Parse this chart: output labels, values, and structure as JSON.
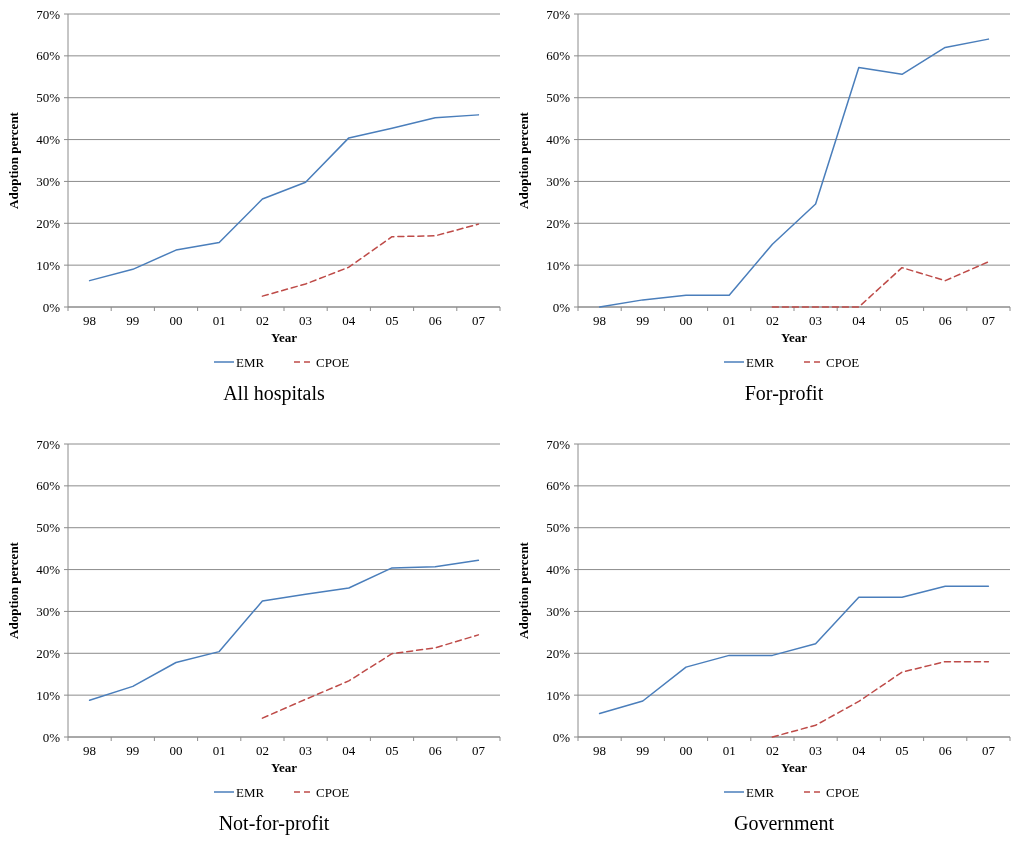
{
  "chart_data": [
    {
      "type": "line",
      "title": "All hospitals",
      "xlabel": "Year",
      "ylabel": "Adoption percent",
      "categories": [
        "98",
        "99",
        "00",
        "01",
        "02",
        "03",
        "04",
        "05",
        "06",
        "07"
      ],
      "series": [
        {
          "name": "EMR",
          "color": "#4a7ebb",
          "line_style": "solid",
          "values": [
            6.3,
            9,
            13.6,
            15.4,
            25.8,
            29.8,
            40.4,
            42.7,
            45.2,
            45.9
          ]
        },
        {
          "name": "CPOE",
          "color": "#be4b48",
          "line_style": "dashed",
          "values": [
            null,
            null,
            null,
            null,
            2.6,
            5.5,
            9.5,
            16.8,
            17,
            19.8
          ]
        }
      ],
      "ylim": [
        0,
        70
      ],
      "yticks": [
        {
          "value": 0,
          "label": "0%"
        },
        {
          "value": 10,
          "label": "10%"
        },
        {
          "value": 20,
          "label": "20%"
        },
        {
          "value": 30,
          "label": "30%"
        },
        {
          "value": 40,
          "label": "40%"
        },
        {
          "value": 50,
          "label": "50%"
        },
        {
          "value": 60,
          "label": "60%"
        },
        {
          "value": 70,
          "label": "70%"
        }
      ],
      "grid": "y",
      "legend": "bottom"
    },
    {
      "type": "line",
      "title": "For-profit",
      "xlabel": "Year",
      "ylabel": "Adoption percent",
      "categories": [
        "98",
        "99",
        "00",
        "01",
        "02",
        "03",
        "04",
        "05",
        "06",
        "07"
      ],
      "series": [
        {
          "name": "EMR",
          "color": "#4a7ebb",
          "line_style": "solid",
          "values": [
            0,
            1.7,
            2.8,
            2.8,
            15,
            24.6,
            57.2,
            55.6,
            62,
            64
          ]
        },
        {
          "name": "CPOE",
          "color": "#be4b48",
          "line_style": "dashed",
          "values": [
            null,
            null,
            null,
            null,
            0,
            0,
            0,
            9.4,
            6.3,
            10.8
          ]
        }
      ],
      "ylim": [
        0,
        70
      ],
      "yticks": [
        {
          "value": 0,
          "label": "0%"
        },
        {
          "value": 10,
          "label": "10%"
        },
        {
          "value": 20,
          "label": "20%"
        },
        {
          "value": 30,
          "label": "30%"
        },
        {
          "value": 40,
          "label": "40%"
        },
        {
          "value": 50,
          "label": "50%"
        },
        {
          "value": 60,
          "label": "60%"
        },
        {
          "value": 70,
          "label": "70%"
        }
      ],
      "grid": "y",
      "legend": "bottom"
    },
    {
      "type": "line",
      "title": "Not-for-profit",
      "xlabel": "Year",
      "ylabel": "Adoption percent",
      "categories": [
        "98",
        "99",
        "00",
        "01",
        "02",
        "03",
        "04",
        "05",
        "06",
        "07"
      ],
      "series": [
        {
          "name": "EMR",
          "color": "#4a7ebb",
          "line_style": "solid",
          "values": [
            8.8,
            12.1,
            17.8,
            20.4,
            32.5,
            34.1,
            35.6,
            40.4,
            40.7,
            42.2
          ]
        },
        {
          "name": "CPOE",
          "color": "#be4b48",
          "line_style": "dashed",
          "values": [
            null,
            null,
            null,
            null,
            4.5,
            9,
            13.4,
            19.9,
            21.3,
            24.4
          ]
        }
      ],
      "ylim": [
        0,
        70
      ],
      "yticks": [
        {
          "value": 0,
          "label": "0%"
        },
        {
          "value": 10,
          "label": "10%"
        },
        {
          "value": 20,
          "label": "20%"
        },
        {
          "value": 30,
          "label": "30%"
        },
        {
          "value": 40,
          "label": "40%"
        },
        {
          "value": 50,
          "label": "50%"
        },
        {
          "value": 60,
          "label": "60%"
        },
        {
          "value": 70,
          "label": "70%"
        }
      ],
      "grid": "y",
      "legend": "bottom"
    },
    {
      "type": "line",
      "title": "Government",
      "xlabel": "Year",
      "ylabel": "Adoption percent",
      "categories": [
        "98",
        "99",
        "00",
        "01",
        "02",
        "03",
        "04",
        "05",
        "06",
        "07"
      ],
      "series": [
        {
          "name": "EMR",
          "color": "#4a7ebb",
          "line_style": "solid",
          "values": [
            5.6,
            8.6,
            16.7,
            19.5,
            19.5,
            22.3,
            33.4,
            33.4,
            36,
            36
          ]
        },
        {
          "name": "CPOE",
          "color": "#be4b48",
          "line_style": "dashed",
          "values": [
            null,
            null,
            null,
            null,
            0,
            2.8,
            8.5,
            15.5,
            18,
            18
          ]
        }
      ],
      "ylim": [
        0,
        70
      ],
      "yticks": [
        {
          "value": 0,
          "label": "0%"
        },
        {
          "value": 10,
          "label": "10%"
        },
        {
          "value": 20,
          "label": "20%"
        },
        {
          "value": 30,
          "label": "30%"
        },
        {
          "value": 40,
          "label": "40%"
        },
        {
          "value": 50,
          "label": "50%"
        },
        {
          "value": 60,
          "label": "60%"
        },
        {
          "value": 70,
          "label": "70%"
        }
      ],
      "grid": "y",
      "legend": "bottom"
    }
  ]
}
